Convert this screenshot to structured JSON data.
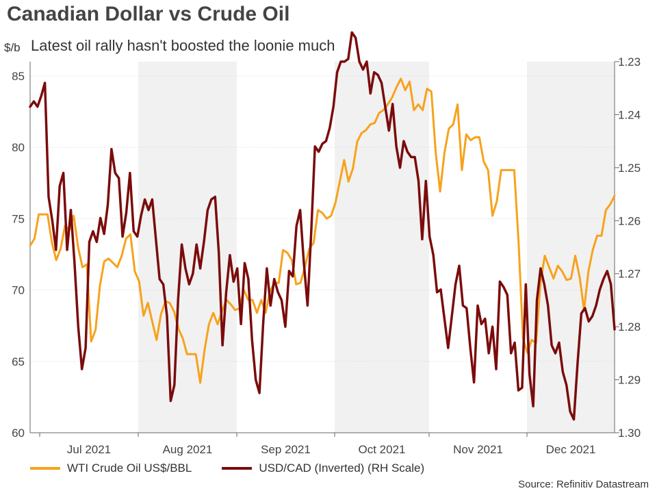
{
  "title": "Canadian Dollar vs Crude Oil",
  "subtitle": "Latest oil rally hasn't boosted the loonie much",
  "source": "Source: Refinitiv Datastream",
  "chart_data": {
    "type": "line",
    "left_axis_unit": "$/b",
    "x_tick_labels": [
      "Jul 2021",
      "Aug 2021",
      "Sep 2021",
      "Oct 2021",
      "Nov 2021",
      "Dec 2021"
    ],
    "ylim_left": [
      60,
      86
    ],
    "yticks_left": [
      60,
      65,
      70,
      75,
      80,
      85
    ],
    "ylim_right_inverted": [
      1.23,
      1.3
    ],
    "yticks_right": [
      "1.23",
      "1.24",
      "1.25",
      "1.26",
      "1.27",
      "1.28",
      "1.29",
      "1.30"
    ],
    "shaded_months": [
      "Aug 2021",
      "Oct 2021",
      "Dec 2021"
    ],
    "grid": true,
    "legend_position": "bottom-left",
    "series": [
      {
        "name": "WTI Crude Oil US$/BBL",
        "axis": "left",
        "color": "#F7A21B",
        "values": [
          73.1,
          73.6,
          75.3,
          75.3,
          75.3,
          73.3,
          72.1,
          72.9,
          74.5,
          74.2,
          75.2,
          73.0,
          71.6,
          71.8,
          66.4,
          67.2,
          70.3,
          72.0,
          72.2,
          71.9,
          71.6,
          72.4,
          73.6,
          73.9,
          71.3,
          70.6,
          68.2,
          69.1,
          67.8,
          66.5,
          68.3,
          69.2,
          69.1,
          68.5,
          67.3,
          66.6,
          65.5,
          65.5,
          65.5,
          63.5,
          65.8,
          67.6,
          68.4,
          67.6,
          68.5,
          69.3,
          69.0,
          68.6,
          68.7,
          70.0,
          69.3,
          69.3,
          68.4,
          69.3,
          68.4,
          69.9,
          70.5,
          70.5,
          72.8,
          72.6,
          72.1,
          70.4,
          70.5,
          71.6,
          72.9,
          73.3,
          75.6,
          75.4,
          75.0,
          75.2,
          76.1,
          77.6,
          79.1,
          77.6,
          78.5,
          80.4,
          81.0,
          81.2,
          81.6,
          81.7,
          82.4,
          82.6,
          83.0,
          83.5,
          84.2,
          84.8,
          84.0,
          84.6,
          82.6,
          83.0,
          82.6,
          84.1,
          83.9,
          79.6,
          76.9,
          79.6,
          81.3,
          81.6,
          83.0,
          78.4,
          80.9,
          80.5,
          80.7,
          80.7,
          79.0,
          78.4,
          75.2,
          76.2,
          78.4,
          78.4,
          78.4,
          78.4,
          73.3,
          66.6,
          65.6,
          66.5,
          66.3,
          70.5,
          72.4,
          71.6,
          70.8,
          71.7,
          71.3,
          70.7,
          70.8,
          72.4,
          70.9,
          68.6,
          71.3,
          72.8,
          73.8,
          73.8,
          75.6,
          76.0,
          76.6
        ]
      },
      {
        "name": "USD/CAD (Inverted) (RH Scale)",
        "axis": "right",
        "color": "#7B0B0B",
        "values": [
          1.2385,
          1.2375,
          1.2385,
          1.2365,
          1.234,
          1.2555,
          1.26,
          1.2655,
          1.2535,
          1.251,
          1.2655,
          1.258,
          1.268,
          1.28,
          1.288,
          1.284,
          1.264,
          1.262,
          1.264,
          1.2595,
          1.2625,
          1.257,
          1.2465,
          1.251,
          1.252,
          1.263,
          1.2585,
          1.251,
          1.262,
          1.263,
          1.259,
          1.256,
          1.258,
          1.256,
          1.2635,
          1.271,
          1.272,
          1.278,
          1.294,
          1.291,
          1.275,
          1.2645,
          1.269,
          1.272,
          1.27,
          1.2645,
          1.269,
          1.264,
          1.258,
          1.256,
          1.2555,
          1.266,
          1.2835,
          1.2735,
          1.2665,
          1.2715,
          1.269,
          1.2795,
          1.268,
          1.271,
          1.2825,
          1.29,
          1.2925,
          1.2795,
          1.269,
          1.276,
          1.271,
          1.2735,
          1.275,
          1.28,
          1.2695,
          1.2705,
          1.261,
          1.258,
          1.268,
          1.276,
          1.262,
          1.246,
          1.247,
          1.2455,
          1.245,
          1.2425,
          1.2385,
          1.232,
          1.23,
          1.23,
          1.2295,
          1.2245,
          1.2255,
          1.23,
          1.2315,
          1.23,
          1.236,
          1.232,
          1.2325,
          1.234,
          1.2385,
          1.243,
          1.238,
          1.246,
          1.25,
          1.245,
          1.247,
          1.248,
          1.248,
          1.2525,
          1.2635,
          1.2525,
          1.263,
          1.2665,
          1.2735,
          1.273,
          1.2785,
          1.284,
          1.278,
          1.272,
          1.2685,
          1.276,
          1.2765,
          1.284,
          1.2905,
          1.276,
          1.2795,
          1.2785,
          1.285,
          1.28,
          1.288,
          1.2715,
          1.2725,
          1.274,
          1.285,
          1.283,
          1.292,
          1.2915,
          1.272,
          1.289,
          1.295,
          1.275,
          1.269,
          1.272,
          1.276,
          1.2835,
          1.285,
          1.283,
          1.2885,
          1.291,
          1.296,
          1.2975,
          1.287,
          1.2775,
          1.2765,
          1.279,
          1.278,
          1.276,
          1.273,
          1.271,
          1.2695,
          1.272,
          1.2805
        ]
      }
    ]
  }
}
